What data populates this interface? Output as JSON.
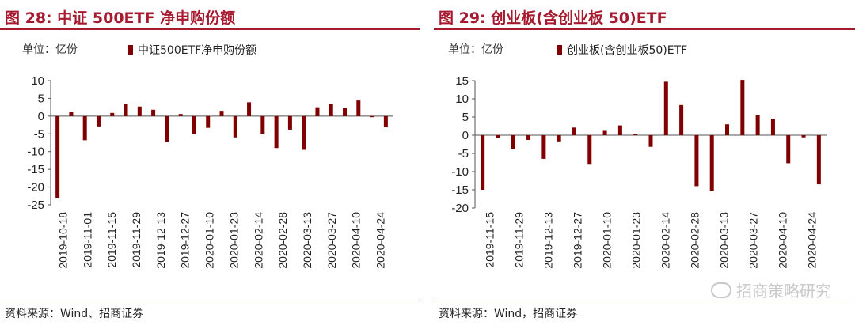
{
  "charts": [
    {
      "figure_title": "图 28:  中证 500ETF 净申购份额",
      "unit_label": "单位：亿份",
      "source": "资料来源：Wind、招商证券"
    },
    {
      "figure_title": "图 29:  创业板(含创业板 50)ETF",
      "unit_label": "单位：亿份",
      "source": "资料来源：Wind，招商证券"
    }
  ],
  "watermark_text": "招商策略研究",
  "colors": {
    "title": "#a6192e",
    "bar": "#800000",
    "axis": "#555555"
  },
  "chart_data": [
    {
      "type": "bar",
      "legend": "中证500ETF净申购份额",
      "legend_position": "top",
      "ylim": [
        -25,
        10
      ],
      "yticks": [
        10,
        5,
        0,
        -5,
        -10,
        -15,
        -20,
        -25
      ],
      "grid": false,
      "tick_labels": [
        "2019-10-18",
        "2019-11-01",
        "2019-11-15",
        "2019-11-29",
        "2019-12-13",
        "2019-12-27",
        "2020-01-10",
        "2020-01-23",
        "2020-02-14",
        "2020-02-28",
        "2020-03-13",
        "2020-03-27",
        "2020-04-10",
        "2020-04-24"
      ],
      "series": [
        {
          "values": [
            -23,
            1.2,
            -6.8,
            -2.9,
            0.9,
            3.5,
            2.7,
            1.8,
            -7.3,
            0.6,
            -5,
            -3.3,
            1.5,
            -6,
            3.9,
            -5,
            -9,
            -3.8,
            -9.5,
            2.5,
            3.4,
            2.4,
            4.4,
            -0.3,
            -3.1
          ]
        }
      ]
    },
    {
      "type": "bar",
      "legend": "创业板(含创业板50)ETF",
      "legend_position": "top",
      "ylim": [
        -20,
        15
      ],
      "yticks": [
        15,
        10,
        5,
        0,
        -5,
        -10,
        -15,
        -20
      ],
      "grid": false,
      "tick_labels": [
        "2019-11-15",
        "2019-11-29",
        "2019-12-13",
        "2019-12-27",
        "2020-01-10",
        "2020-01-23",
        "2020-02-14",
        "2020-02-28",
        "2020-03-13",
        "2020-03-27",
        "2020-04-10",
        "2020-04-24"
      ],
      "series": [
        {
          "values": [
            -15,
            -0.8,
            -3.7,
            -1.3,
            -6.5,
            -1.7,
            2.1,
            -8.1,
            1.2,
            2.7,
            0.4,
            -3.2,
            14.7,
            8.3,
            -14,
            -15.3,
            3,
            15.2,
            5.5,
            4.5,
            -7.7,
            -0.6,
            -13.5
          ]
        }
      ]
    }
  ]
}
